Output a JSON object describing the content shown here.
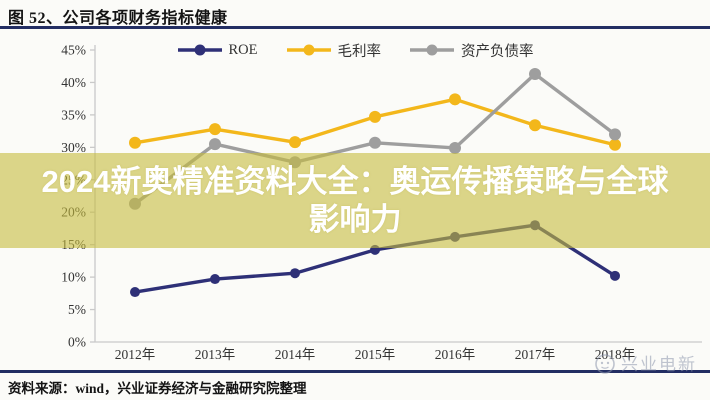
{
  "figure": {
    "title": "图 52、公司各项财务指标健康",
    "source": "资料来源：wind，兴业证券经济与金融研究院整理",
    "watermark": "兴业电新"
  },
  "overlay_banner": {
    "line1": "2024新奥精准资料大全：奥运传播策略与全球",
    "line2": "影响力"
  },
  "chart_data": {
    "type": "line",
    "title": "公司各项财务指标健康",
    "categories": [
      "2012年",
      "2013年",
      "2014年",
      "2015年",
      "2016年",
      "2017年",
      "2018年"
    ],
    "series": [
      {
        "name": "ROE",
        "color": "#2e3077",
        "values": [
          7.7,
          9.7,
          10.6,
          14.2,
          16.2,
          18.0,
          10.2
        ]
      },
      {
        "name": "毛利率",
        "color": "#f3b71b",
        "values": [
          30.7,
          32.8,
          30.8,
          34.7,
          37.4,
          33.4,
          30.4
        ]
      },
      {
        "name": "资产负债率",
        "color": "#9e9e9e",
        "values": [
          21.3,
          30.5,
          27.7,
          30.7,
          29.9,
          41.3,
          32.0
        ]
      }
    ],
    "ylim": [
      0,
      45
    ],
    "ytick_step": 5,
    "ytick_suffix": "%",
    "grid": false,
    "legend_position": "top-center"
  },
  "colors": {
    "accent_navy": "#232e63",
    "banner_background": "rgba(198,188,62,0.60)",
    "banner_text": "#ffffff",
    "axis_line": "#c9c9c9",
    "tick_text": "#333333",
    "watermark_text": "#8e97ad"
  }
}
